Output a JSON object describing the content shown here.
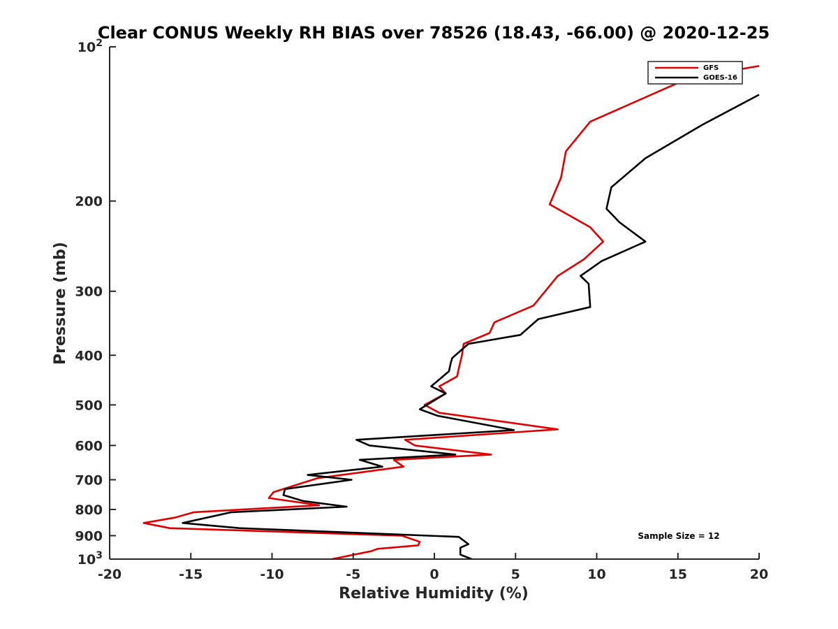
{
  "chart_data": {
    "type": "line",
    "title": "Clear CONUS Weekly RH BIAS over 78526 (18.43, -66.00) @ 2020-12-25",
    "xlabel": "Relative Humidity (%)",
    "ylabel": "Pressure (mb)",
    "xlim": [
      -20,
      20
    ],
    "ylim": [
      100,
      1000
    ],
    "y_scale": "log",
    "y_reversed": true,
    "grid": false,
    "legend_position": "top-right",
    "annotation": "Sample Size = 12",
    "x_ticks": [
      "-20",
      "-15",
      "-10",
      "-5",
      "0",
      "5",
      "10",
      "15",
      "20"
    ],
    "x_tick_values": [
      -20,
      -15,
      -10,
      -5,
      0,
      5,
      10,
      15,
      20
    ],
    "y_ticks": [
      {
        "value": 100,
        "base": "10",
        "exp": "2"
      },
      {
        "value": 200,
        "base": "200",
        "exp": ""
      },
      {
        "value": 300,
        "base": "300",
        "exp": ""
      },
      {
        "value": 400,
        "base": "400",
        "exp": ""
      },
      {
        "value": 500,
        "base": "500",
        "exp": ""
      },
      {
        "value": 600,
        "base": "600",
        "exp": ""
      },
      {
        "value": 700,
        "base": "700",
        "exp": ""
      },
      {
        "value": 800,
        "base": "800",
        "exp": ""
      },
      {
        "value": 900,
        "base": "900",
        "exp": ""
      },
      {
        "value": 1000,
        "base": "10",
        "exp": "3"
      }
    ],
    "series": [
      {
        "name": "GFS",
        "color": "#e00000",
        "points": [
          [
            20,
            109
          ],
          [
            15.7,
            115
          ],
          [
            9.6,
            140
          ],
          [
            8.1,
            160
          ],
          [
            7.8,
            180
          ],
          [
            7.1,
            203
          ],
          [
            9.6,
            225
          ],
          [
            10.4,
            240
          ],
          [
            9.2,
            260
          ],
          [
            7.6,
            280
          ],
          [
            6.1,
            320
          ],
          [
            3.7,
            345
          ],
          [
            3.4,
            362
          ],
          [
            1.8,
            380
          ],
          [
            1.7,
            400
          ],
          [
            1.5,
            425
          ],
          [
            1.4,
            440
          ],
          [
            0.3,
            460
          ],
          [
            0.7,
            475
          ],
          [
            -0.6,
            500
          ],
          [
            0.3,
            518
          ],
          [
            7.6,
            558
          ],
          [
            -1.8,
            585
          ],
          [
            -1.2,
            600
          ],
          [
            3.5,
            625
          ],
          [
            -2.5,
            640
          ],
          [
            -1.9,
            660
          ],
          [
            -7.2,
            695
          ],
          [
            -9.9,
            740
          ],
          [
            -10.2,
            760
          ],
          [
            -7.1,
            785
          ],
          [
            -14.8,
            810
          ],
          [
            -16.0,
            830
          ],
          [
            -17.9,
            850
          ],
          [
            -16.3,
            870
          ],
          [
            -2.0,
            900
          ],
          [
            -0.9,
            925
          ],
          [
            -1.0,
            940
          ],
          [
            -3.5,
            955
          ],
          [
            -3.9,
            965
          ],
          [
            -6.3,
            1000
          ]
        ]
      },
      {
        "name": "GOES-16",
        "color": "#000000",
        "points": [
          [
            20,
            124
          ],
          [
            16.5,
            142
          ],
          [
            13.0,
            165
          ],
          [
            10.9,
            188
          ],
          [
            10.6,
            207
          ],
          [
            11.4,
            220
          ],
          [
            13.0,
            240
          ],
          [
            10.3,
            262
          ],
          [
            9.0,
            280
          ],
          [
            9.5,
            290
          ],
          [
            9.6,
            322
          ],
          [
            6.4,
            340
          ],
          [
            5.3,
            365
          ],
          [
            2.1,
            380
          ],
          [
            1.1,
            405
          ],
          [
            1.0,
            415
          ],
          [
            0.9,
            430
          ],
          [
            -0.2,
            460
          ],
          [
            0.7,
            475
          ],
          [
            -0.9,
            510
          ],
          [
            0.2,
            525
          ],
          [
            4.9,
            560
          ],
          [
            -4.8,
            585
          ],
          [
            -4.0,
            600
          ],
          [
            1.3,
            625
          ],
          [
            -4.6,
            640
          ],
          [
            -3.2,
            660
          ],
          [
            -7.8,
            685
          ],
          [
            -5.1,
            700
          ],
          [
            -9.2,
            730
          ],
          [
            -9.3,
            750
          ],
          [
            -8.1,
            770
          ],
          [
            -5.4,
            790
          ],
          [
            -12.5,
            810
          ],
          [
            -15.5,
            850
          ],
          [
            -12.0,
            870
          ],
          [
            1.5,
            905
          ],
          [
            2.1,
            935
          ],
          [
            1.6,
            950
          ],
          [
            1.6,
            980
          ],
          [
            2.3,
            1000
          ]
        ]
      }
    ]
  }
}
